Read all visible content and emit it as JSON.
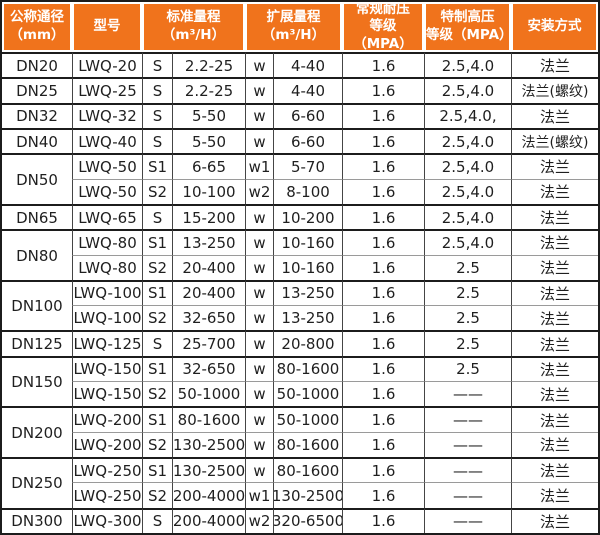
{
  "table": {
    "colors": {
      "header_bg": "#f0731c",
      "header_text": "#ffffff",
      "body_text": "#1f1f1f",
      "grid_dark": "#1c1c1c",
      "grid_light": "#9a9a9a"
    },
    "header": {
      "col_dn": "公称通径\n（mm）",
      "col_model": "型号",
      "col_std": "标准量程\n（m³/H）",
      "col_ext": "扩展量程\n（m³/H）",
      "col_pressure": "常规耐压\n等级（MPA）",
      "col_high_pressure": "特制高压\n等级（MPA）",
      "col_install": "安装方式"
    },
    "rows": [
      {
        "dn": "DN20",
        "dn_rowspan": 1,
        "model": "LWQ-20",
        "s": "S",
        "std": "2.2-25",
        "w": "w",
        "ext": "4-40",
        "pressure": "1.6",
        "high": "2.5,4.0",
        "install": "法兰"
      },
      {
        "dn": "DN25",
        "dn_rowspan": 1,
        "model": "LWQ-25",
        "s": "S",
        "std": "2.2-25",
        "w": "w",
        "ext": "4-40",
        "pressure": "1.6",
        "high": "2.5,4.0",
        "install": "法兰(螺纹)"
      },
      {
        "dn": "DN32",
        "dn_rowspan": 1,
        "model": "LWQ-32",
        "s": "S",
        "std": "5-50",
        "w": "w",
        "ext": "6-60",
        "pressure": "1.6",
        "high": "2.5,4.0,",
        "install": "法兰"
      },
      {
        "dn": "DN40",
        "dn_rowspan": 1,
        "model": "LWQ-40",
        "s": "S",
        "std": "5-50",
        "w": "w",
        "ext": "6-60",
        "pressure": "1.6",
        "high": "2.5,4.0",
        "install": "法兰(螺纹)"
      },
      {
        "dn": "DN50",
        "dn_rowspan": 2,
        "model": "LWQ-50",
        "s": "S1",
        "std": "6-65",
        "w": "w1",
        "ext": "5-70",
        "pressure": "1.6",
        "high": "2.5,4.0",
        "install": "法兰"
      },
      {
        "model": "LWQ-50",
        "s": "S2",
        "std": "10-100",
        "w": "w2",
        "ext": "8-100",
        "pressure": "1.6",
        "high": "2.5,4.0",
        "install": "法兰"
      },
      {
        "dn": "DN65",
        "dn_rowspan": 1,
        "model": "LWQ-65",
        "s": "S",
        "std": "15-200",
        "w": "w",
        "ext": "10-200",
        "pressure": "1.6",
        "high": "2.5,4.0",
        "install": "法兰"
      },
      {
        "dn": "DN80",
        "dn_rowspan": 2,
        "model": "LWQ-80",
        "s": "S1",
        "std": "13-250",
        "w": "w",
        "ext": "10-160",
        "pressure": "1.6",
        "high": "2.5,4.0",
        "install": "法兰"
      },
      {
        "model": "LWQ-80",
        "s": "S2",
        "std": "20-400",
        "w": "w",
        "ext": "10-160",
        "pressure": "1.6",
        "high": "2.5",
        "install": "法兰"
      },
      {
        "dn": "DN100",
        "dn_rowspan": 2,
        "model": "LWQ-100",
        "s": "S1",
        "std": "20-400",
        "w": "w",
        "ext": "13-250",
        "pressure": "1.6",
        "high": "2.5",
        "install": "法兰"
      },
      {
        "model": "LWQ-100",
        "s": "S2",
        "std": "32-650",
        "w": "w",
        "ext": "13-250",
        "pressure": "1.6",
        "high": "2.5",
        "install": "法兰"
      },
      {
        "dn": "DN125",
        "dn_rowspan": 1,
        "model": "LWQ-125",
        "s": "S",
        "std": "25-700",
        "w": "w",
        "ext": "20-800",
        "pressure": "1.6",
        "high": "2.5",
        "install": "法兰"
      },
      {
        "dn": "DN150",
        "dn_rowspan": 2,
        "model": "LWQ-150",
        "s": "S1",
        "std": "32-650",
        "w": "w",
        "ext": "80-1600",
        "pressure": "1.6",
        "high": "2.5",
        "install": "法兰"
      },
      {
        "model": "LWQ-150",
        "s": "S2",
        "std": "50-1000",
        "w": "w",
        "ext": "50-1000",
        "pressure": "1.6",
        "high": "——",
        "install": "法兰"
      },
      {
        "dn": "DN200",
        "dn_rowspan": 2,
        "model": "LWQ-200",
        "s": "S1",
        "std": "80-1600",
        "w": "w",
        "ext": "50-1000",
        "pressure": "1.6",
        "high": "——",
        "install": "法兰"
      },
      {
        "model": "LWQ-200",
        "s": "S2",
        "std": "130-2500",
        "w": "w",
        "ext": "80-1600",
        "pressure": "1.6",
        "high": "——",
        "install": "法兰"
      },
      {
        "dn": "DN250",
        "dn_rowspan": 2,
        "model": "LWQ-250",
        "s": "S1",
        "std": "130-2500",
        "w": "w",
        "ext": "80-1600",
        "pressure": "1.6",
        "high": "——",
        "install": "法兰"
      },
      {
        "model": "LWQ-250",
        "s": "S2",
        "std": "200-4000",
        "w": "w1",
        "ext": "130-2500",
        "pressure": "1.6",
        "high": "——",
        "install": "法兰"
      },
      {
        "dn": "DN300",
        "dn_rowspan": 1,
        "model": "LWQ-300",
        "s": "S",
        "std": "200-4000",
        "w": "w2",
        "ext": "320-6500",
        "pressure": "1.6",
        "high": "——",
        "install": "法兰"
      }
    ]
  }
}
